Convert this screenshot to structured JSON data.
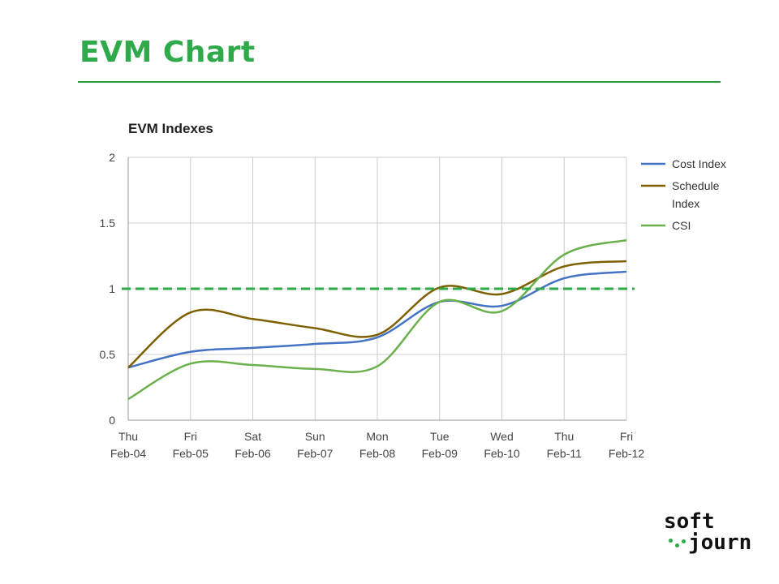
{
  "slide": {
    "title": "EVM Chart",
    "logo": {
      "line1": "soft",
      "line2": "journ"
    }
  },
  "colors": {
    "accent": "#2eaa4a",
    "cost": "#4472c4",
    "schedule": "#7f6000",
    "csi": "#6ab04c",
    "reference": "#2eaa4a",
    "grid": "#cccccc"
  },
  "chart_data": {
    "type": "line",
    "title": "EVM Indexes",
    "xlabel": "",
    "ylabel": "",
    "ylim": [
      0,
      2
    ],
    "yticks": [
      "0",
      "0.5",
      "1",
      "1.5",
      "2"
    ],
    "categories": [
      [
        "Thu",
        "Feb-04"
      ],
      [
        "Fri",
        "Feb-05"
      ],
      [
        "Sat",
        "Feb-06"
      ],
      [
        "Sun",
        "Feb-07"
      ],
      [
        "Mon",
        "Feb-08"
      ],
      [
        "Tue",
        "Feb-09"
      ],
      [
        "Wed",
        "Feb-10"
      ],
      [
        "Thu",
        "Feb-11"
      ],
      [
        "Fri",
        "Feb-12"
      ]
    ],
    "series": [
      {
        "name": "Cost Index",
        "legend_lines": [
          "Cost Index"
        ],
        "color_key": "cost",
        "values": [
          0.4,
          0.52,
          0.55,
          0.58,
          0.63,
          0.9,
          0.87,
          1.08,
          1.13
        ]
      },
      {
        "name": "Schedule Index",
        "legend_lines": [
          "Schedule",
          "Index"
        ],
        "color_key": "schedule",
        "values": [
          0.4,
          0.82,
          0.77,
          0.7,
          0.65,
          1.01,
          0.96,
          1.17,
          1.21
        ]
      },
      {
        "name": "CSI",
        "legend_lines": [
          "CSI"
        ],
        "color_key": "csi",
        "values": [
          0.16,
          0.43,
          0.42,
          0.39,
          0.41,
          0.9,
          0.83,
          1.26,
          1.37
        ]
      }
    ],
    "reference_line": {
      "value": 1.0,
      "style": "dashed"
    },
    "grid": true,
    "legend_position": "right"
  }
}
